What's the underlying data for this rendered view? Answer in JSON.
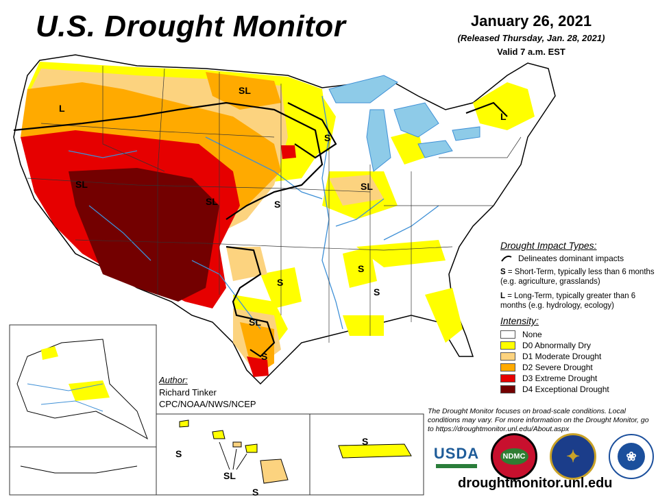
{
  "header": {
    "title": "U.S. Drought Monitor",
    "date": "January 26, 2021",
    "released": "(Released Thursday, Jan. 28, 2021)",
    "valid": "Valid 7 a.m. EST"
  },
  "map_labels": {
    "sl_north": "SL",
    "l_west": "L",
    "s_mn": "S",
    "sl_west": "SL",
    "sl_co": "SL",
    "s_ks": "S",
    "sl_il": "SL",
    "l_ne": "L",
    "s_ms": "S",
    "s_tx": "S",
    "s_al": "S",
    "sl_tx": "SL",
    "s_stx": "S",
    "s_hi": "S",
    "sl_hi": "SL",
    "s_pr": "S",
    "s_hi2": "S"
  },
  "legend": {
    "impact_heading": "Drought Impact Types:",
    "delineates": "Delineates dominant impacts",
    "s_key": "S",
    "s_text": "= Short-Term, typically less than 6 months (e.g. agriculture, grasslands)",
    "l_key": "L",
    "l_text": "= Long-Term, typically greater than 6 months (e.g. hydrology, ecology)",
    "intensity_heading": "Intensity:",
    "categories": [
      {
        "label": "None",
        "color": "#ffffff"
      },
      {
        "label": "D0 Abnormally Dry",
        "color": "#ffff00"
      },
      {
        "label": "D1 Moderate Drought",
        "color": "#fcd37f"
      },
      {
        "label": "D2 Severe Drought",
        "color": "#ffaa00"
      },
      {
        "label": "D3 Extreme Drought",
        "color": "#e60000"
      },
      {
        "label": "D4 Exceptional Drought",
        "color": "#730000"
      }
    ]
  },
  "author": {
    "heading": "Author:",
    "name": "Richard Tinker",
    "org": "CPC/NOAA/NWS/NCEP"
  },
  "disclaimer": "The Drought Monitor focuses on broad-scale conditions. Local conditions may vary. For more information on the Drought Monitor, go to https://droughtmonitor.unl.edu/About.aspx",
  "logos": {
    "usda": "USDA",
    "ndmc": "NDMC"
  },
  "website": "droughtmonitor.unl.edu",
  "colors": {
    "water": "#8ecbe8",
    "river": "#3d8fd6",
    "border": "#000000"
  }
}
